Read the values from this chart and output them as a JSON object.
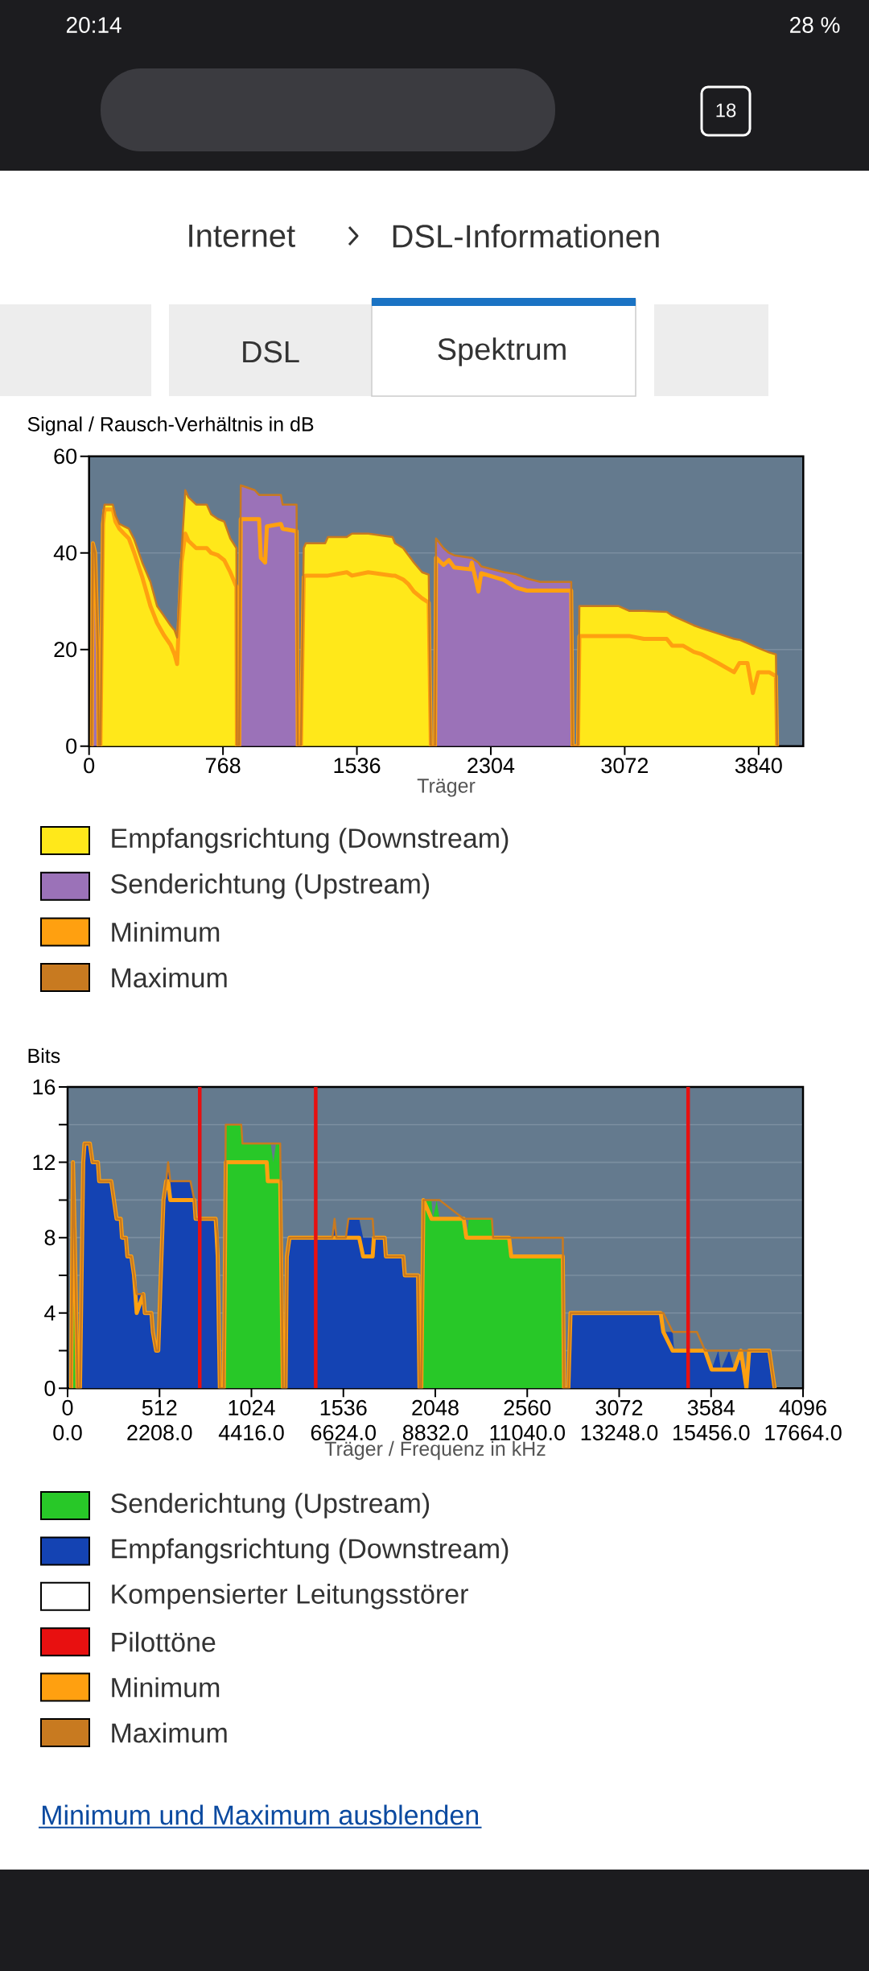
{
  "chart_data": [
    {
      "type": "other",
      "title": "DSL-Informationen",
      "subtitle": "Internet",
      "annotations": [
        "DSL",
        "Spektrum",
        "20:14",
        "28 %",
        "18"
      ]
    },
    {
      "type": "area",
      "ylabel": "Signal / Rausch-Verhältnis in dB",
      "xlabel": "Träger",
      "xlim": [
        0,
        4096
      ],
      "xticks": [
        0,
        768,
        1536,
        2304,
        3072,
        3840
      ],
      "ylim": [
        0,
        60
      ],
      "yticks": [
        0,
        20,
        40,
        60
      ],
      "grid": "y",
      "legend": "bottom",
      "series": [
        {
          "name": "Empfangsrichtung (Downstream)",
          "type": "area",
          "color": "#ffe81a",
          "x": [
            65,
            80,
            89,
            136,
            151,
            174,
            200,
            228,
            259,
            305,
            352,
            390,
            429,
            467,
            490,
            505,
            530,
            552,
            570,
            614,
            675,
            700,
            740,
            775,
            810,
            845,
            848,
            1215,
            1231,
            1243,
            1354,
            1370,
            1478,
            1508,
            1601,
            1740,
            1755,
            1801,
            1832,
            1863,
            1910,
            1948,
            1960,
            2804,
            2812,
            3035,
            3097,
            3182,
            3313,
            3344,
            3406,
            3468,
            3514,
            3607,
            3699,
            3730,
            3776,
            3807,
            3838,
            3900,
            3939,
            3946
          ],
          "values": [
            0,
            48,
            50,
            50,
            47.8,
            46,
            45.5,
            45,
            42.8,
            38,
            34,
            29,
            27,
            25,
            24,
            22.5,
            40,
            53,
            51.5,
            50,
            50,
            48,
            47,
            46.5,
            43,
            41,
            0,
            0,
            41,
            42,
            42,
            43.3,
            43.3,
            44,
            44,
            43.3,
            42,
            41,
            39.5,
            38,
            36,
            35.5,
            0,
            0,
            29,
            29,
            28,
            28,
            27.8,
            27,
            26,
            25,
            24.4,
            23.3,
            22.2,
            22,
            21.3,
            20.8,
            20.3,
            19.4,
            19,
            0
          ]
        },
        {
          "name": "Senderichtung (Upstream)",
          "type": "area",
          "color": "#9b72b8",
          "x": [
            15,
            22,
            35,
            50,
            55,
            861,
            870,
            950,
            975,
            985,
            1010,
            1020,
            1100,
            1110,
            1190,
            1197,
            1984,
            1990,
            2033,
            2064,
            2094,
            2187,
            2195,
            2233,
            2249,
            2380,
            2449,
            2511,
            2588,
            2765,
            2773
          ],
          "values": [
            0,
            42,
            40,
            20,
            0,
            0,
            54,
            53,
            52,
            52,
            52,
            52,
            52,
            50,
            50,
            0,
            0,
            43,
            41,
            40,
            39.5,
            39,
            39,
            38,
            37.2,
            36,
            35.6,
            34.7,
            34,
            34,
            0
          ]
        },
        {
          "name": "Minimum",
          "type": "line",
          "color": "#ffa010",
          "x": [
            15,
            22,
            35,
            50,
            55,
            65,
            80,
            89,
            136,
            151,
            174,
            200,
            228,
            259,
            305,
            352,
            390,
            429,
            467,
            490,
            505,
            530,
            552,
            570,
            614,
            675,
            700,
            740,
            775,
            810,
            845,
            848,
            861,
            870,
            950,
            975,
            985,
            1010,
            1020,
            1100,
            1110,
            1190,
            1197,
            1215,
            1231,
            1243,
            1354,
            1370,
            1478,
            1508,
            1601,
            1740,
            1755,
            1801,
            1832,
            1863,
            1910,
            1948,
            1960,
            1984,
            1990,
            2033,
            2064,
            2094,
            2187,
            2195,
            2233,
            2249,
            2380,
            2449,
            2511,
            2588,
            2765,
            2773,
            2804,
            2812,
            3035,
            3097,
            3182,
            3313,
            3344,
            3406,
            3468,
            3514,
            3607,
            3699,
            3730,
            3776,
            3807,
            3838,
            3900,
            3939,
            3946
          ],
          "values": [
            0,
            42,
            40,
            20,
            0,
            0,
            46,
            49,
            49,
            46.5,
            45,
            44,
            43,
            40,
            35,
            29,
            25.5,
            23,
            21,
            19,
            17,
            38,
            44,
            42.5,
            41,
            41,
            40,
            39.5,
            38.5,
            36,
            33,
            0,
            0,
            47,
            47,
            47,
            39,
            38,
            45.5,
            46,
            45,
            44.5,
            0,
            0,
            35,
            35.3,
            35.3,
            35.3,
            36,
            35.3,
            36,
            35.3,
            35.3,
            34.5,
            33.5,
            32,
            30.6,
            29.7,
            0,
            0,
            39,
            37.5,
            38.5,
            37,
            36.6,
            38,
            32,
            35.8,
            34.4,
            32.8,
            32.2,
            32.2,
            32.2,
            0,
            0,
            22.8,
            22.8,
            22.8,
            22.2,
            22.2,
            20.8,
            20.8,
            19.5,
            19,
            17.2,
            15.3,
            17.2,
            17.2,
            11,
            15.3,
            15.3,
            14.5,
            0
          ]
        },
        {
          "name": "Maximum",
          "type": "line",
          "color": "#c87a20",
          "x": [
            15,
            22,
            35,
            50,
            55,
            65,
            80,
            89,
            136,
            151,
            174,
            200,
            228,
            259,
            305,
            352,
            390,
            429,
            467,
            490,
            505,
            530,
            552,
            570,
            614,
            675,
            700,
            740,
            775,
            810,
            845,
            848,
            861,
            870,
            950,
            975,
            985,
            1010,
            1020,
            1100,
            1110,
            1190,
            1197,
            1215,
            1231,
            1243,
            1354,
            1370,
            1478,
            1508,
            1601,
            1740,
            1755,
            1801,
            1832,
            1863,
            1910,
            1948,
            1960,
            1984,
            1990,
            2033,
            2064,
            2094,
            2187,
            2195,
            2233,
            2249,
            2380,
            2449,
            2511,
            2588,
            2765,
            2773,
            2804,
            2812,
            3035,
            3097,
            3182,
            3313,
            3344,
            3406,
            3468,
            3514,
            3607,
            3699,
            3730,
            3776,
            3807,
            3838,
            3900,
            3939,
            3946
          ],
          "values": [
            0,
            42,
            40,
            20,
            0,
            0,
            48,
            50,
            50,
            47.8,
            46,
            45.5,
            45,
            42.8,
            38,
            34,
            29,
            27,
            25,
            24,
            22.5,
            40,
            53,
            51.5,
            50,
            50,
            48,
            47,
            46.5,
            43,
            41,
            0,
            0,
            54,
            53,
            52,
            52,
            52,
            52,
            52,
            50,
            50,
            0,
            0,
            41,
            42,
            42,
            43.3,
            43.3,
            44,
            44,
            43.3,
            42,
            41,
            39.5,
            38,
            36,
            35.5,
            0,
            0,
            43,
            41,
            40,
            39.5,
            39,
            39,
            38,
            37.2,
            36,
            35.6,
            34.7,
            34,
            34,
            0,
            0,
            29,
            29,
            28,
            28,
            27.8,
            27,
            26,
            25,
            24.4,
            23.3,
            22.2,
            22,
            21.3,
            20.8,
            20.3,
            19.4,
            19,
            0
          ]
        }
      ]
    },
    {
      "type": "area",
      "ylabel": "Bits",
      "xlabel": "Träger / Frequenz in kHz",
      "xlim": [
        0,
        4096
      ],
      "xticks": [
        0,
        512,
        1024,
        1536,
        2048,
        2560,
        3072,
        3584,
        4096
      ],
      "x2lim": [
        0,
        17664
      ],
      "x2ticks": [
        {
          "value": 0,
          "label": "0.0"
        },
        {
          "value": 2208,
          "label": "2208.0"
        },
        {
          "value": 4416,
          "label": "4416.0"
        },
        {
          "value": 6624,
          "label": "6624.0"
        },
        {
          "value": 8832,
          "label": "8832.0"
        },
        {
          "value": 11040,
          "label": "11040.0"
        },
        {
          "value": 13248,
          "label": "13248.0"
        },
        {
          "value": 15456,
          "label": "15456.0"
        },
        {
          "value": 17664,
          "label": "17664.0"
        }
      ],
      "ylim": [
        0,
        16
      ],
      "yticks": [
        0,
        {
          "value": 2,
          "label": null
        },
        4,
        {
          "value": 6,
          "label": null
        },
        8,
        {
          "value": 10,
          "label": null
        },
        12,
        {
          "value": 14,
          "label": null
        },
        16
      ],
      "grid": "y",
      "legend": "bottom",
      "annotations": [
        "Minimum und Maximum ausblenden"
      ],
      "series": [
        {
          "name": "Senderichtung (Upstream)",
          "type": "area",
          "color": "#28c828",
          "x": [
            20,
            30,
            40,
            55,
            870,
            881,
            967,
            974,
            1109,
            1115,
            1131,
            1146,
            1161,
            1184,
            1199,
            1970,
            1982,
            2027,
            2034,
            2056,
            2071,
            2206,
            2221,
            2236,
            2363,
            2370,
            2459,
            2471,
            2758,
            2765
          ],
          "values": [
            0,
            12,
            8,
            0,
            0,
            14,
            14,
            13,
            13,
            13,
            13,
            12,
            13,
            13,
            0,
            0,
            10,
            10,
            9,
            10,
            9,
            9,
            8,
            9,
            9,
            8,
            8,
            7,
            7,
            0
          ]
        },
        {
          "name": "Empfangsrichtung (Downstream)",
          "type": "area",
          "color": "#1443b3",
          "x": [
            69,
            87,
            94,
            124,
            139,
            169,
            176,
            243,
            258,
            273,
            296,
            303,
            325,
            333,
            355,
            370,
            385,
            422,
            430,
            467,
            475,
            493,
            505,
            519,
            534,
            549,
            560,
            572,
            631,
            684,
            706,
            713,
            825,
            836,
            848,
            1214,
            1221,
            1236,
            1475,
            1487,
            1497,
            1550,
            1564,
            1624,
            1646,
            1699,
            1706,
            1766,
            1773,
            1870,
            1878,
            1952,
            1960,
            2789,
            2801,
            3303,
            3318,
            3370,
            3378,
            3505,
            3550,
            3587,
            3624,
            3639,
            3684,
            3714,
            3750,
            3781,
            3796,
            3908,
            3923,
            3938
          ],
          "values": [
            0,
            12,
            13,
            13,
            12,
            12,
            11,
            11,
            10,
            9,
            9,
            8,
            8,
            7,
            7,
            6,
            5,
            5,
            4,
            4,
            3,
            2,
            2,
            6,
            10,
            11,
            12,
            11,
            11,
            11,
            10,
            9,
            9,
            8,
            0,
            0,
            7,
            8,
            8,
            9,
            8,
            8,
            9,
            9,
            8,
            8,
            8,
            8,
            7,
            7,
            6,
            6,
            0,
            0,
            4,
            4,
            3,
            3,
            2,
            2,
            2,
            1,
            2,
            1,
            2,
            1,
            2,
            0,
            2,
            2,
            1,
            0
          ]
        },
        {
          "name": "Kompensierter Leitungsstörer",
          "type": "area",
          "color": "#ffffff"
        },
        {
          "name": "Pilottöne",
          "type": "bar",
          "color": "#e81010",
          "x": [
            736,
            1382,
            3456
          ],
          "values": [
            16,
            16,
            16
          ]
        },
        {
          "name": "Minimum",
          "type": "line",
          "color": "#ffa010",
          "x": [
            20,
            30,
            40,
            55,
            69,
            87,
            94,
            124,
            139,
            169,
            176,
            243,
            258,
            273,
            296,
            303,
            325,
            333,
            355,
            370,
            385,
            422,
            430,
            467,
            475,
            493,
            505,
            519,
            534,
            549,
            560,
            572,
            631,
            684,
            706,
            713,
            825,
            836,
            848,
            870,
            881,
            967,
            974,
            1109,
            1115,
            1131,
            1146,
            1161,
            1184,
            1199,
            1214,
            1221,
            1236,
            1475,
            1487,
            1497,
            1550,
            1564,
            1624,
            1646,
            1699,
            1706,
            1766,
            1773,
            1870,
            1878,
            1952,
            1960,
            1970,
            1982,
            2027,
            2034,
            2056,
            2071,
            2206,
            2221,
            2236,
            2363,
            2370,
            2459,
            2471,
            2758,
            2765,
            2789,
            2801,
            3303,
            3318,
            3370,
            3378,
            3505,
            3550,
            3587,
            3624,
            3639,
            3684,
            3714,
            3750,
            3781,
            3796,
            3908,
            3923,
            3938
          ],
          "values": [
            0,
            12,
            8,
            0,
            0,
            12,
            13,
            13,
            12,
            12,
            11,
            11,
            10,
            9,
            9,
            8,
            8,
            7,
            7,
            6,
            4,
            5,
            4,
            4,
            3,
            2,
            2,
            6,
            10,
            11,
            11,
            10,
            10,
            10,
            10,
            9,
            9,
            7,
            0,
            0,
            12,
            12,
            12,
            12,
            11,
            11,
            11,
            11,
            11,
            0,
            0,
            7,
            8,
            8,
            8,
            8,
            8,
            8,
            8,
            7,
            7,
            8,
            8,
            7,
            7,
            6,
            6,
            0,
            0,
            10,
            9,
            9,
            9,
            9,
            9,
            8,
            8,
            8,
            8,
            8,
            7,
            7,
            0,
            0,
            4,
            4,
            3,
            2,
            2,
            2,
            2,
            1,
            1,
            1,
            1,
            1,
            2,
            0,
            2,
            2,
            1,
            0
          ]
        },
        {
          "name": "Maximum",
          "type": "line",
          "color": "#c87a20",
          "x": [
            20,
            30,
            40,
            55,
            69,
            87,
            94,
            124,
            139,
            169,
            176,
            243,
            258,
            273,
            296,
            303,
            325,
            333,
            355,
            370,
            385,
            422,
            430,
            467,
            475,
            493,
            505,
            519,
            534,
            549,
            560,
            572,
            631,
            684,
            706,
            713,
            825,
            836,
            848,
            870,
            881,
            967,
            974,
            1109,
            1115,
            1131,
            1146,
            1161,
            1184,
            1199,
            1214,
            1221,
            1236,
            1475,
            1487,
            1497,
            1550,
            1564,
            1624,
            1646,
            1699,
            1706,
            1766,
            1773,
            1870,
            1878,
            1952,
            1960,
            1970,
            1982,
            2027,
            2034,
            2056,
            2071,
            2206,
            2221,
            2236,
            2363,
            2370,
            2459,
            2471,
            2758,
            2765,
            2789,
            2801,
            3303,
            3318,
            3370,
            3378,
            3505,
            3550,
            3587,
            3624,
            3639,
            3684,
            3714,
            3750,
            3781,
            3796,
            3908,
            3923,
            3938
          ],
          "values": [
            0,
            12,
            8,
            0,
            0,
            12,
            13,
            13,
            12,
            12,
            11,
            11,
            10,
            9,
            9,
            8,
            8,
            7,
            7,
            6,
            5,
            5,
            4,
            4,
            3,
            2,
            2,
            6,
            10,
            11,
            12,
            11,
            11,
            11,
            10,
            9,
            9,
            8,
            0,
            0,
            14,
            14,
            13,
            13,
            13,
            13,
            13,
            13,
            13,
            0,
            0,
            7,
            8,
            8,
            9,
            8,
            8,
            9,
            9,
            9,
            9,
            8,
            8,
            7,
            7,
            6,
            6,
            0,
            0,
            10,
            10,
            10,
            10,
            10,
            9,
            9,
            9,
            9,
            8,
            8,
            8,
            8,
            0,
            0,
            4,
            4,
            4,
            3,
            3,
            3,
            2,
            2,
            2,
            2,
            2,
            2,
            2,
            2,
            2,
            2,
            1,
            0
          ]
        }
      ]
    }
  ]
}
